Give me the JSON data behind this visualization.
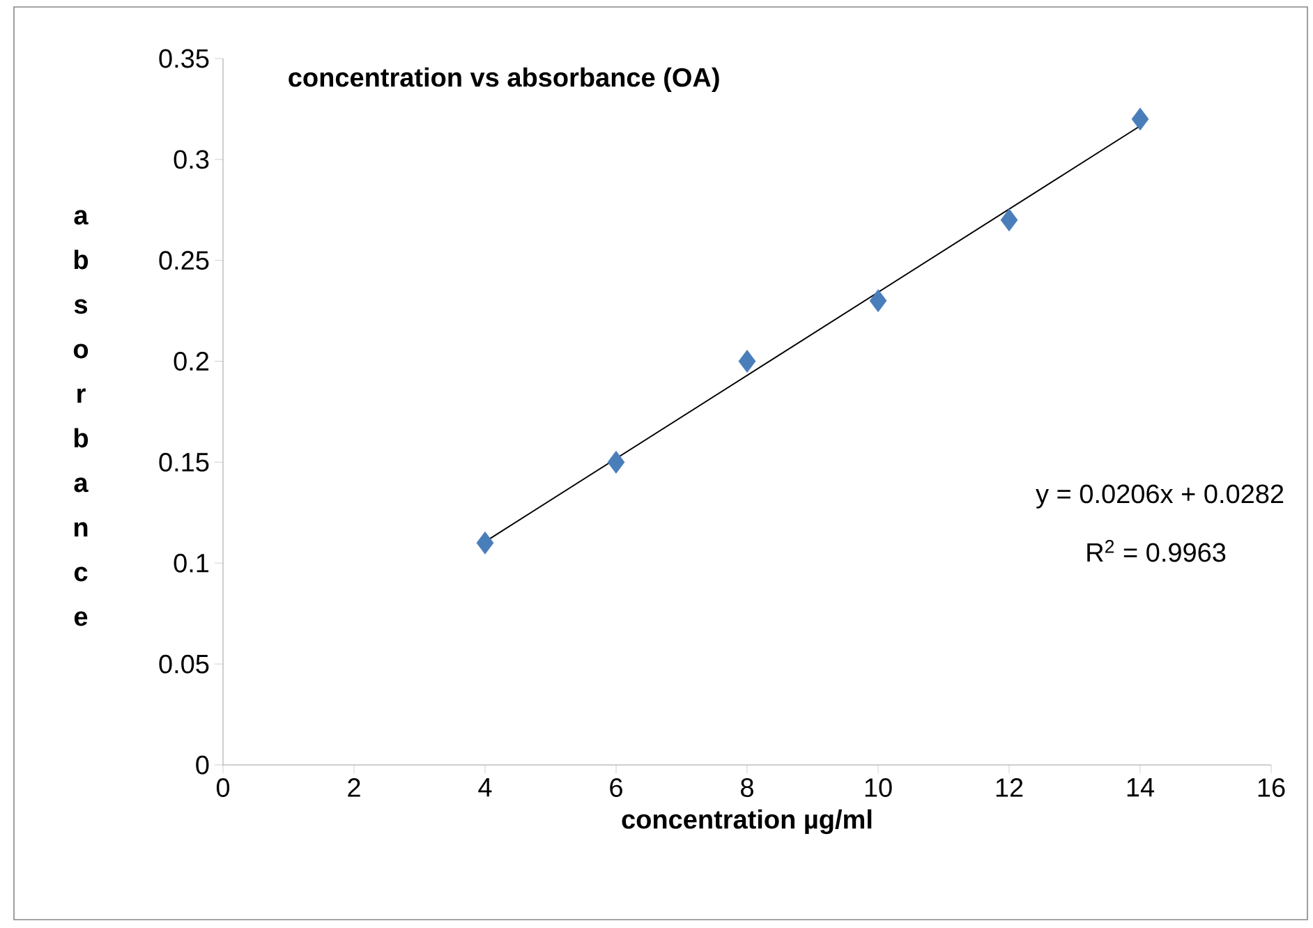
{
  "chart_data": {
    "type": "scatter",
    "title": "concentration vs absorbance (OA)",
    "xlabel": "concentration µg/ml",
    "ylabel": "absorbance",
    "x": [
      4,
      6,
      8,
      10,
      12,
      14
    ],
    "series": [
      {
        "color": "#4a7ebb",
        "marker": "diamond",
        "values": [
          0.11,
          0.15,
          0.2,
          0.23,
          0.27,
          0.32
        ]
      },
      {
        "type": "line",
        "color": "#000000",
        "x": [
          4,
          14
        ],
        "values": [
          0.1106,
          0.3166
        ]
      }
    ],
    "xlim": [
      0,
      16
    ],
    "ylim": [
      0,
      0.35
    ],
    "xticks": [
      0,
      2,
      4,
      6,
      8,
      10,
      12,
      14,
      16
    ],
    "yticks": [
      0,
      0.05,
      0.1,
      0.15,
      0.2,
      0.25,
      0.3,
      0.35
    ],
    "annotations": [
      "y = 0.0206x + 0.0282",
      "R$^{2}$ = 0.9963"
    ]
  }
}
